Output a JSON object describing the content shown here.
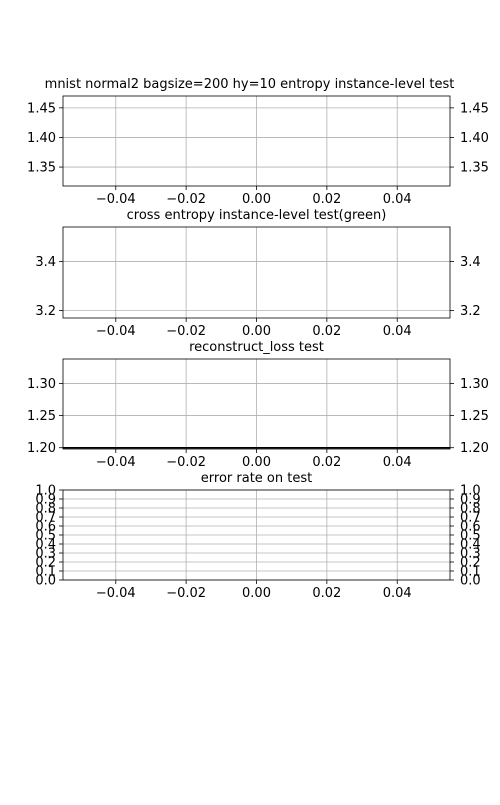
{
  "chart_data": [
    {
      "type": "line",
      "title": "mnist normal2 bagsize=200 hy=10 entropy instance-level test",
      "xlim": [
        -0.055,
        0.055
      ],
      "ylim": [
        1.318,
        1.47
      ],
      "x_ticks": [
        "−0.04",
        "−0.02",
        "0.00",
        "0.02",
        "0.04"
      ],
      "y_ticks": [
        "1.35",
        "1.40",
        "1.45"
      ],
      "y_tick_values": [
        1.35,
        1.4,
        1.45
      ],
      "twin_y_ticks": [
        "1.35",
        "1.40",
        "1.45"
      ],
      "grid": true,
      "series": []
    },
    {
      "type": "line",
      "title": "cross entropy instance-level test(green)",
      "xlim": [
        -0.055,
        0.055
      ],
      "ylim": [
        3.17,
        3.54
      ],
      "x_ticks": [
        "−0.04",
        "−0.02",
        "0.00",
        "0.02",
        "0.04"
      ],
      "y_ticks": [
        "3.2",
        "3.4"
      ],
      "y_tick_values": [
        3.2,
        3.4
      ],
      "twin_y_ticks": [
        "3.2",
        "3.4"
      ],
      "grid": true,
      "series": []
    },
    {
      "type": "line",
      "title": "reconstruct_loss test",
      "xlim": [
        -0.055,
        0.055
      ],
      "ylim": [
        1.198,
        1.338
      ],
      "x_ticks": [
        "−0.04",
        "−0.02",
        "0.00",
        "0.02",
        "0.04"
      ],
      "y_ticks": [
        "1.20",
        "1.25",
        "1.30"
      ],
      "y_tick_values": [
        1.2,
        1.25,
        1.3
      ],
      "twin_y_ticks": [
        "1.20",
        "1.25",
        "1.30"
      ],
      "grid": true,
      "series": [
        {
          "x": [
            -0.055,
            0.055
          ],
          "y": [
            1.2,
            1.2
          ],
          "color": "#000000"
        }
      ]
    },
    {
      "type": "line",
      "title": "error rate on test",
      "xlim": [
        -0.055,
        0.055
      ],
      "ylim": [
        0.0,
        1.0
      ],
      "x_ticks": [
        "−0.04",
        "−0.02",
        "0.00",
        "0.02",
        "0.04"
      ],
      "y_ticks": [
        "0.0",
        "0.1",
        "0.2",
        "0.3",
        "0.4",
        "0.5",
        "0.6",
        "0.7",
        "0.8",
        "0.9",
        "1.0"
      ],
      "y_tick_values": [
        0.0,
        0.1,
        0.2,
        0.3,
        0.4,
        0.5,
        0.6,
        0.7,
        0.8,
        0.9,
        1.0
      ],
      "twin_y_ticks": [
        "0.0",
        "0.1",
        "0.2",
        "0.3",
        "0.4",
        "0.5",
        "0.6",
        "0.7",
        "0.8",
        "0.9",
        "1.0"
      ],
      "grid": true,
      "series": []
    }
  ],
  "x_tick_values": [
    -0.04,
    -0.02,
    0.0,
    0.02,
    0.04
  ],
  "colors": {
    "grid": "#b0b0b0",
    "axes": "#000000",
    "background": "#ffffff"
  }
}
